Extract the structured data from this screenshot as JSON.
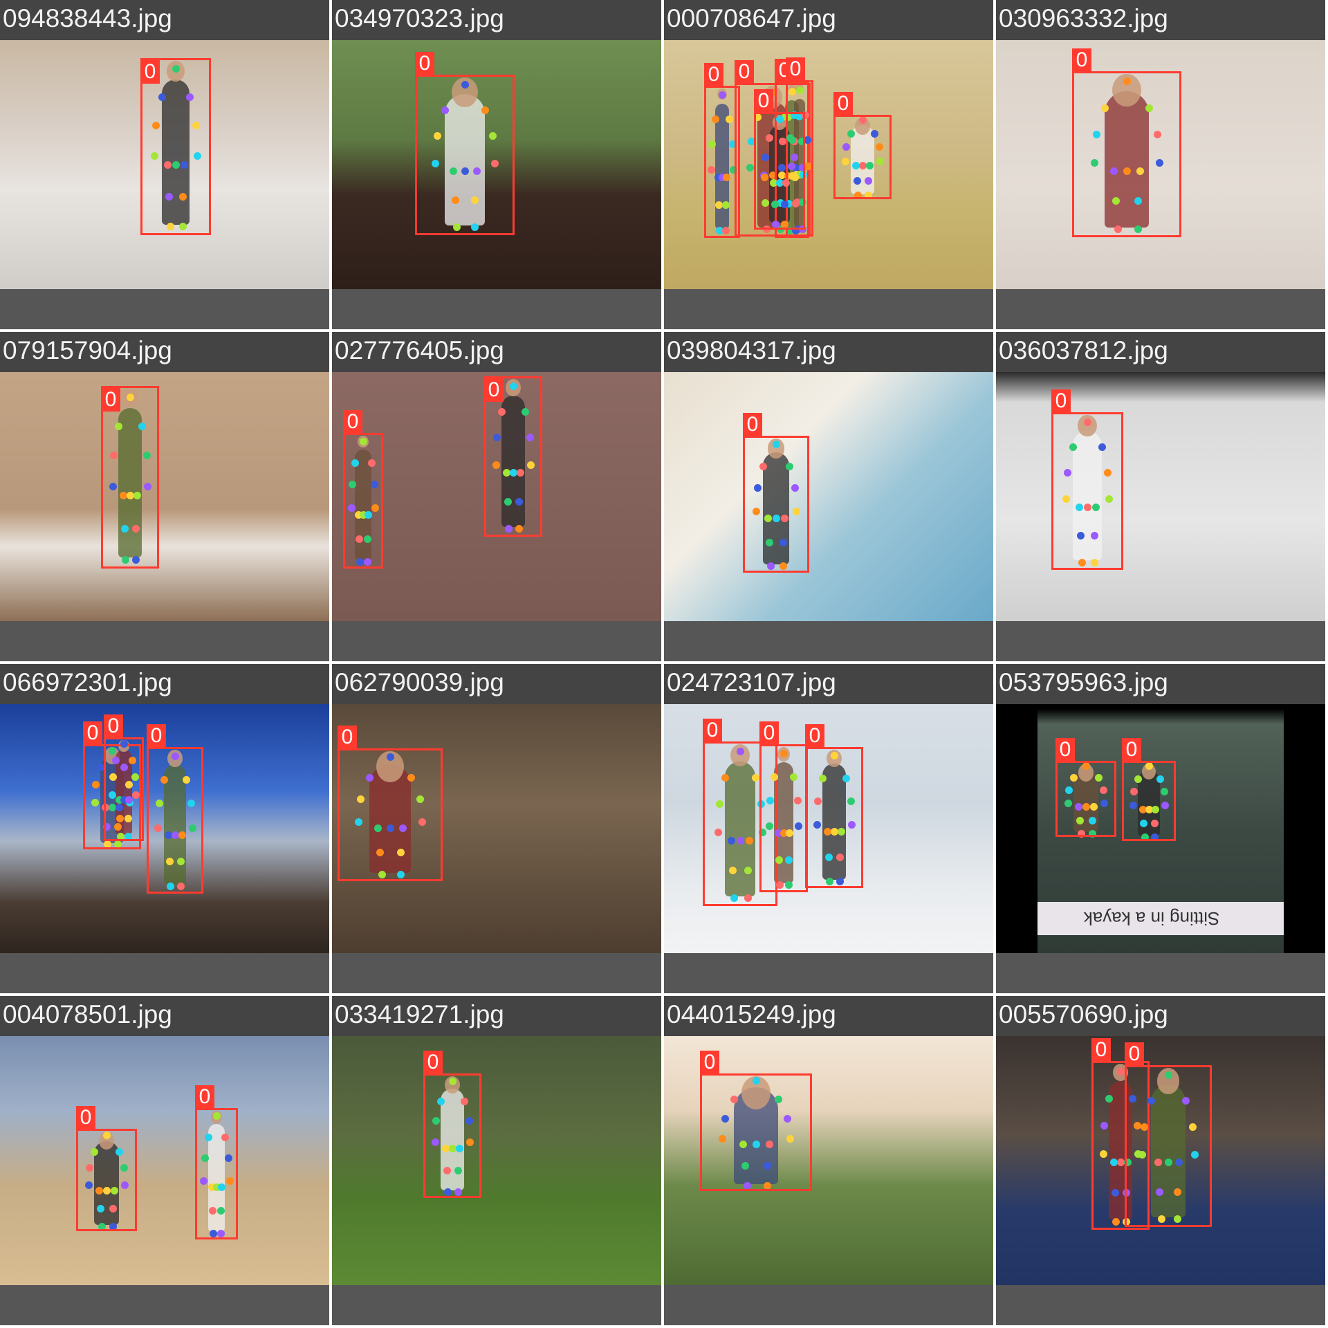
{
  "grid": {
    "tiles": [
      {
        "filename": "094838443.jpg",
        "detections": [
          {
            "class_label": "0"
          }
        ]
      },
      {
        "filename": "034970323.jpg",
        "detections": [
          {
            "class_label": "0"
          }
        ]
      },
      {
        "filename": "000708647.jpg",
        "detections": [
          {
            "class_label": "0"
          },
          {
            "class_label": "0"
          },
          {
            "class_label": "0"
          },
          {
            "class_label": "0"
          },
          {
            "class_label": "0"
          },
          {
            "class_label": "0"
          }
        ]
      },
      {
        "filename": "030963332.jpg",
        "detections": [
          {
            "class_label": "0"
          }
        ]
      },
      {
        "filename": "079157904.jpg",
        "detections": [
          {
            "class_label": "0"
          }
        ]
      },
      {
        "filename": "027776405.jpg",
        "detections": [
          {
            "class_label": "0"
          },
          {
            "class_label": "0"
          }
        ]
      },
      {
        "filename": "039804317.jpg",
        "detections": [
          {
            "class_label": "0"
          }
        ]
      },
      {
        "filename": "036037812.jpg",
        "detections": [
          {
            "class_label": "0"
          }
        ]
      },
      {
        "filename": "066972301.jpg",
        "detections": [
          {
            "class_label": "0"
          },
          {
            "class_label": "0"
          },
          {
            "class_label": "0"
          }
        ]
      },
      {
        "filename": "062790039.jpg",
        "detections": [
          {
            "class_label": "0"
          }
        ]
      },
      {
        "filename": "024723107.jpg",
        "detections": [
          {
            "class_label": "0"
          },
          {
            "class_label": "0"
          },
          {
            "class_label": "0"
          }
        ]
      },
      {
        "filename": "053795963.jpg",
        "detections": [
          {
            "class_label": "0"
          },
          {
            "class_label": "0"
          }
        ],
        "caption": "Sitting in a kayak"
      },
      {
        "filename": "004078501.jpg",
        "detections": [
          {
            "class_label": "0"
          },
          {
            "class_label": "0"
          }
        ]
      },
      {
        "filename": "033419271.jpg",
        "detections": [
          {
            "class_label": "0"
          }
        ]
      },
      {
        "filename": "044015249.jpg",
        "detections": [
          {
            "class_label": "0"
          }
        ]
      },
      {
        "filename": "005570690.jpg",
        "detections": [
          {
            "class_label": "0"
          },
          {
            "class_label": "0"
          }
        ]
      }
    ]
  },
  "colors": {
    "box": "#ff3b30",
    "tile_background": "#565656",
    "header": "#444444",
    "keypoints": [
      "#2ecc71",
      "#3b5bdb",
      "#9b59ff",
      "#ff8c1a",
      "#ffd43b",
      "#a3e635",
      "#22d3ee",
      "#ff6b6b"
    ]
  }
}
